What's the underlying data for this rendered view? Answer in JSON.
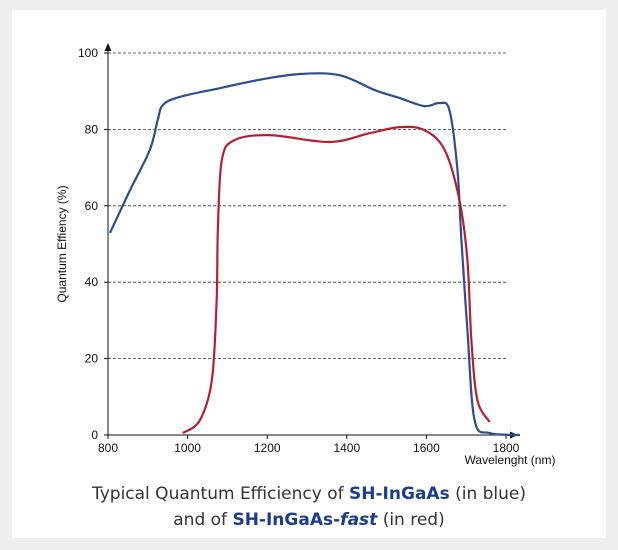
{
  "chart_data": {
    "type": "line",
    "y_label": "Quantum Effiency (%)",
    "x_label": "Wavelenght (nm)",
    "xlim": [
      800,
      1800
    ],
    "ylim": [
      0,
      100
    ],
    "xticks": [
      800,
      1000,
      1200,
      1400,
      1600,
      1800
    ],
    "yticks": [
      0,
      20,
      40,
      60,
      80,
      100
    ],
    "grid": true,
    "series": [
      {
        "name": "SH-InGaAs",
        "color": "#2e4d8f",
        "x": [
          805,
          855,
          905,
          925,
          938,
          980,
          1081,
          1181,
          1282,
          1382,
          1470,
          1533,
          1595,
          1633,
          1658,
          1678,
          1688,
          1703,
          1721,
          1759,
          1835
        ],
        "values": [
          52.9,
          64,
          74.6,
          82.5,
          86.4,
          88.5,
          90.8,
          93,
          94.5,
          94.2,
          90.3,
          88.2,
          86.1,
          86.9,
          85,
          69.4,
          51,
          27.5,
          3.9,
          0.5,
          0
        ]
      },
      {
        "name": "SH-InGaAs-fast",
        "color": "#b5202e",
        "x": [
          988,
          1031,
          1061,
          1073,
          1076,
          1086,
          1118,
          1206,
          1357,
          1457,
          1533,
          1595,
          1646,
          1683,
          1703,
          1713,
          1728,
          1759
        ],
        "values": [
          0.5,
          3.9,
          14.4,
          35.3,
          53.7,
          72,
          77.2,
          78.5,
          76.7,
          79,
          80.6,
          79.8,
          74.6,
          61.5,
          45.8,
          24.9,
          9.2,
          3.4
        ]
      }
    ]
  },
  "caption": {
    "line1": [
      "Typical Quantum Efficiency of ",
      "SH-InGaAs",
      " (in blue)"
    ],
    "line2": [
      "and of ",
      "SH-InGaAs-",
      "fast",
      " (in red)"
    ]
  }
}
